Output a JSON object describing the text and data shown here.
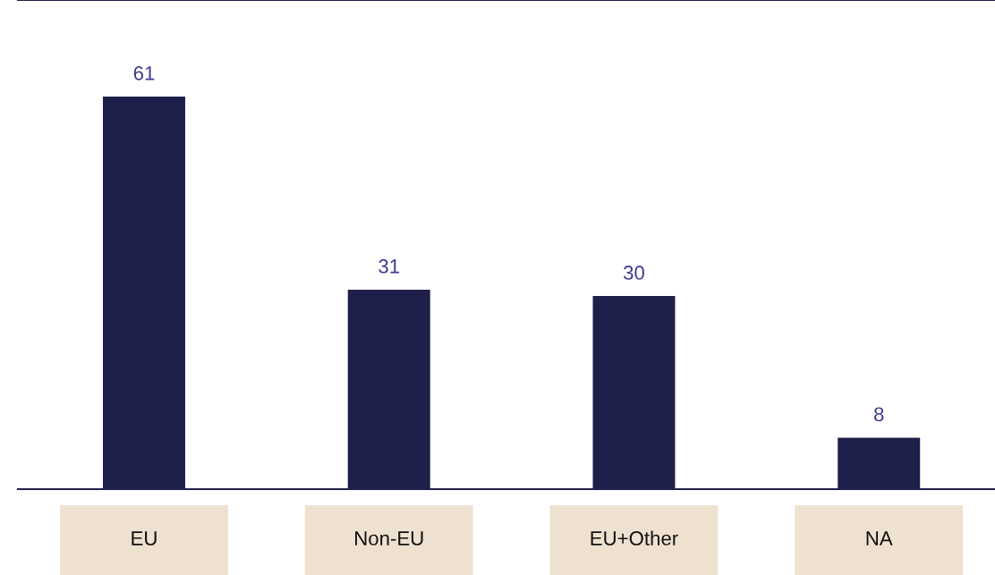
{
  "chart_data": {
    "type": "bar",
    "categories": [
      "EU",
      "Non-EU",
      "EU+Other",
      "NA"
    ],
    "values": [
      61,
      31,
      30,
      8
    ],
    "color": "#1f1f4b",
    "data_labels": true,
    "ylim": [
      0,
      76
    ]
  }
}
